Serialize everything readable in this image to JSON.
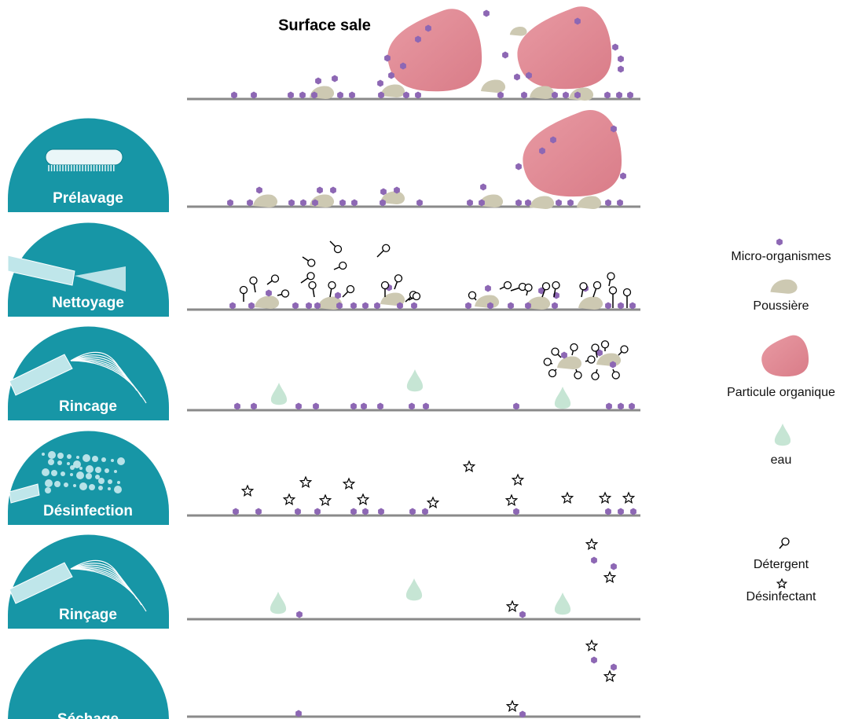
{
  "title": "Surface sale",
  "steps": [
    "Prélavage",
    "Nettoyage",
    "Rincage",
    "Désinfection",
    "Rinçage",
    "Séchage"
  ],
  "legend": [
    "Micro-organismes",
    "Poussière",
    "Particule organique",
    "eau",
    "Détergent",
    "Désinfectant"
  ]
}
